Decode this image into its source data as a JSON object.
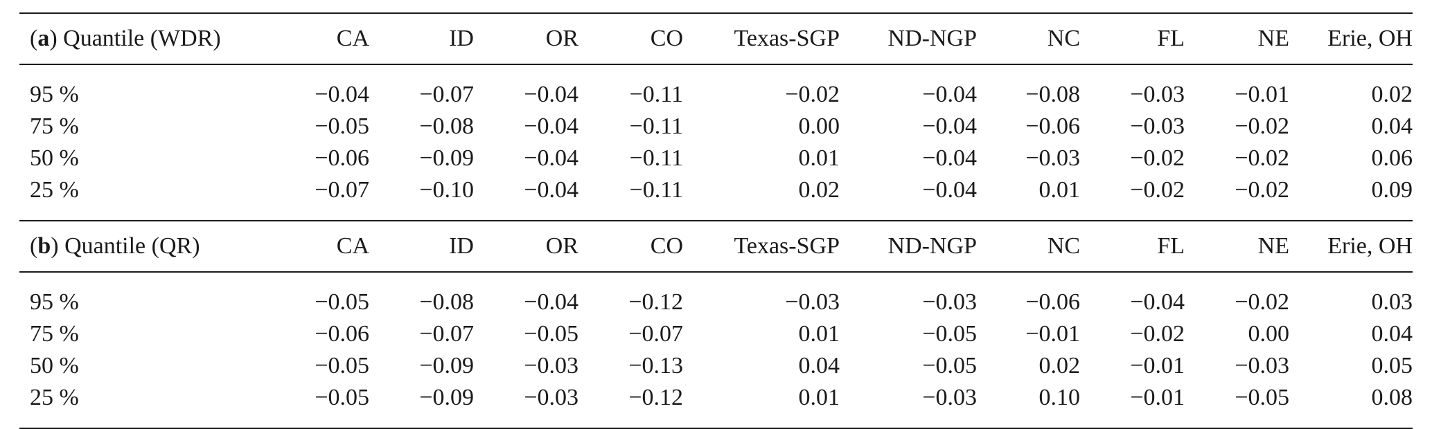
{
  "columns": [
    "CA",
    "ID",
    "OR",
    "CO",
    "Texas-SGP",
    "ND-NGP",
    "NC",
    "FL",
    "NE",
    "Erie, OH"
  ],
  "panel_a": {
    "paren_open": "(",
    "letter": "a",
    "paren_close": ")",
    "title": " Quantile (WDR)",
    "rows": [
      {
        "label": "95 %",
        "values": [
          "−0.04",
          "−0.07",
          "−0.04",
          "−0.11",
          "−0.02",
          "−0.04",
          "−0.08",
          "−0.03",
          "−0.01",
          "0.02"
        ]
      },
      {
        "label": "75 %",
        "values": [
          "−0.05",
          "−0.08",
          "−0.04",
          "−0.11",
          "0.00",
          "−0.04",
          "−0.06",
          "−0.03",
          "−0.02",
          "0.04"
        ]
      },
      {
        "label": "50 %",
        "values": [
          "−0.06",
          "−0.09",
          "−0.04",
          "−0.11",
          "0.01",
          "−0.04",
          "−0.03",
          "−0.02",
          "−0.02",
          "0.06"
        ]
      },
      {
        "label": "25 %",
        "values": [
          "−0.07",
          "−0.10",
          "−0.04",
          "−0.11",
          "0.02",
          "−0.04",
          "0.01",
          "−0.02",
          "−0.02",
          "0.09"
        ]
      }
    ]
  },
  "panel_b": {
    "paren_open": "(",
    "letter": "b",
    "paren_close": ")",
    "title": " Quantile (QR)",
    "rows": [
      {
        "label": "95 %",
        "values": [
          "−0.05",
          "−0.08",
          "−0.04",
          "−0.12",
          "−0.03",
          "−0.03",
          "−0.06",
          "−0.04",
          "−0.02",
          "0.03"
        ]
      },
      {
        "label": "75 %",
        "values": [
          "−0.06",
          "−0.07",
          "−0.05",
          "−0.07",
          "0.01",
          "−0.05",
          "−0.01",
          "−0.02",
          "0.00",
          "0.04"
        ]
      },
      {
        "label": "50 %",
        "values": [
          "−0.05",
          "−0.09",
          "−0.03",
          "−0.13",
          "0.04",
          "−0.05",
          "0.02",
          "−0.01",
          "−0.03",
          "0.05"
        ]
      },
      {
        "label": "25 %",
        "values": [
          "−0.05",
          "−0.09",
          "−0.03",
          "−0.12",
          "0.01",
          "−0.03",
          "0.10",
          "−0.01",
          "−0.05",
          "0.08"
        ]
      }
    ]
  }
}
